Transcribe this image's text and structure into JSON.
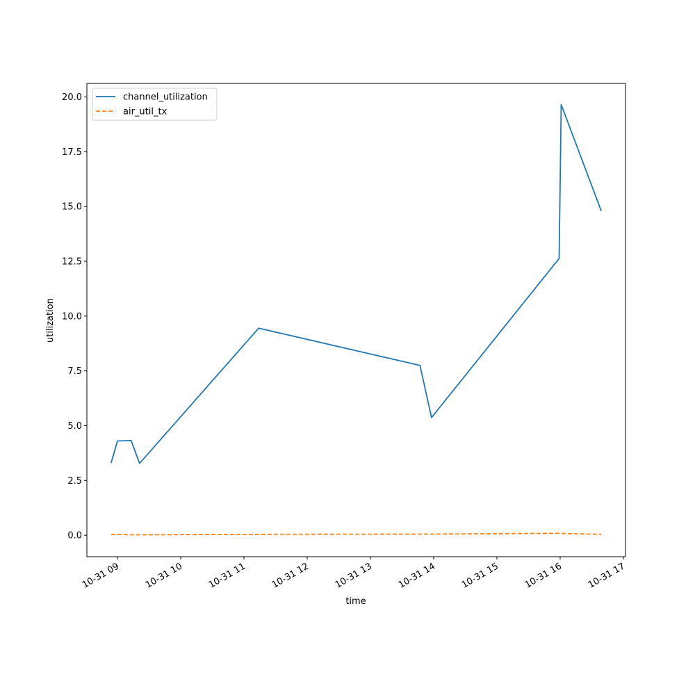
{
  "chart_data": {
    "type": "line",
    "title": "",
    "xlabel": "time",
    "ylabel": "utilization",
    "x_type": "datetime",
    "xlim": [
      "10-31 08:31",
      "10-31 17:02"
    ],
    "ylim": [
      -0.98,
      20.62
    ],
    "xticks": [
      {
        "value": "10-31 09:00",
        "label": "10-31 09"
      },
      {
        "value": "10-31 10:00",
        "label": "10-31 10"
      },
      {
        "value": "10-31 11:00",
        "label": "10-31 11"
      },
      {
        "value": "10-31 12:00",
        "label": "10-31 12"
      },
      {
        "value": "10-31 13:00",
        "label": "10-31 13"
      },
      {
        "value": "10-31 14:00",
        "label": "10-31 14"
      },
      {
        "value": "10-31 15:00",
        "label": "10-31 15"
      },
      {
        "value": "10-31 16:00",
        "label": "10-31 16"
      },
      {
        "value": "10-31 17:00",
        "label": "10-31 17"
      }
    ],
    "yticks": [
      {
        "value": 0.0,
        "label": "0.0"
      },
      {
        "value": 2.5,
        "label": "2.5"
      },
      {
        "value": 5.0,
        "label": "5.0"
      },
      {
        "value": 7.5,
        "label": "7.5"
      },
      {
        "value": 10.0,
        "label": "10.0"
      },
      {
        "value": 12.5,
        "label": "12.5"
      },
      {
        "value": 15.0,
        "label": "15.0"
      },
      {
        "value": 17.5,
        "label": "17.5"
      },
      {
        "value": 20.0,
        "label": "20.0"
      }
    ],
    "grid": false,
    "legend_position": "top-left",
    "series": [
      {
        "name": "channel_utilization",
        "color": "#1f77b4",
        "style": "solid",
        "points": [
          {
            "x": "10-31 08:54",
            "y": 3.3
          },
          {
            "x": "10-31 09:00",
            "y": 4.3
          },
          {
            "x": "10-31 09:13",
            "y": 4.32
          },
          {
            "x": "10-31 09:21",
            "y": 3.28
          },
          {
            "x": "10-31 11:14",
            "y": 9.45
          },
          {
            "x": "10-31 13:47",
            "y": 7.75
          },
          {
            "x": "10-31 13:58",
            "y": 5.37
          },
          {
            "x": "10-31 15:59",
            "y": 12.63
          },
          {
            "x": "10-31 16:01",
            "y": 19.65
          },
          {
            "x": "10-31 16:39",
            "y": 14.8
          }
        ]
      },
      {
        "name": "air_util_tx",
        "color": "#ff7f0e",
        "style": "dashed",
        "points": [
          {
            "x": "10-31 08:54",
            "y": 0.03
          },
          {
            "x": "10-31 09:00",
            "y": 0.04
          },
          {
            "x": "10-31 09:13",
            "y": 0.02
          },
          {
            "x": "10-31 09:21",
            "y": 0.02
          },
          {
            "x": "10-31 11:14",
            "y": 0.04
          },
          {
            "x": "10-31 13:47",
            "y": 0.05
          },
          {
            "x": "10-31 13:58",
            "y": 0.05
          },
          {
            "x": "10-31 15:59",
            "y": 0.09
          },
          {
            "x": "10-31 16:01",
            "y": 0.08
          },
          {
            "x": "10-31 16:39",
            "y": 0.04
          }
        ]
      }
    ]
  }
}
